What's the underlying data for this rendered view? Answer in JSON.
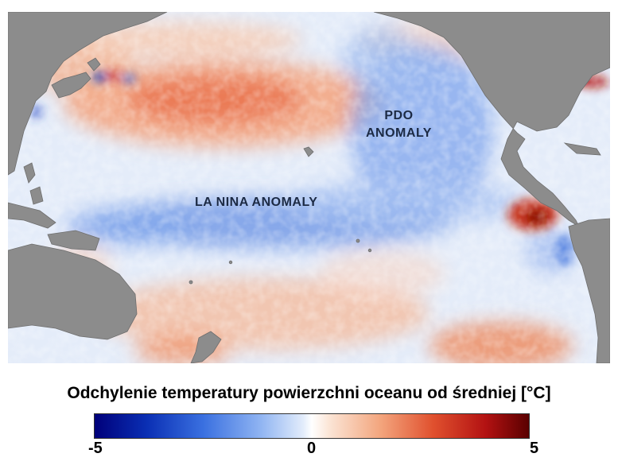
{
  "map": {
    "labels": {
      "la_nina": "LA NINA ANOMALY",
      "pdo_line1": "PDO",
      "pdo_line2": "ANOMALY"
    },
    "colors": {
      "land": "#8c8c8c",
      "ocean_base": "#dfe9f8",
      "cold": "#4f7fe0",
      "warm": "#f08a5a",
      "hot": "#b71c0c"
    }
  },
  "legend": {
    "title": "Odchylenie temperatury powierzchni oceanu od średniej [°C]",
    "min_label": "-5",
    "mid_label": "0",
    "max_label": "5",
    "scale": {
      "min": -5,
      "mid": 0,
      "max": 5,
      "unit": "°C"
    },
    "gradient_colors": [
      "#00007a",
      "#3a70e0",
      "#ffffff",
      "#e0502e",
      "#5a0000"
    ]
  }
}
